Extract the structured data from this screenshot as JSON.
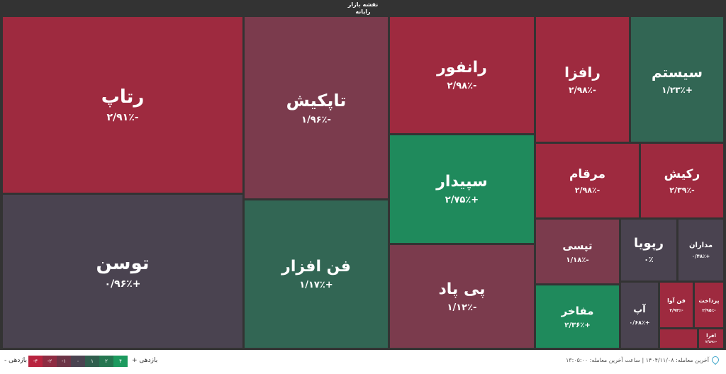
{
  "header": {
    "title": "نقشه بازار",
    "subtitle": "رایانه"
  },
  "colors": {
    "strong_red": "#9e2a3f",
    "muted_red": "#7b3b4d",
    "neutral": "#4a4350",
    "muted_green": "#326654",
    "strong_green": "#1f8a5c"
  },
  "tiles": [
    {
      "name": "رتاپ",
      "change": "-۲/۹۱٪",
      "color": "#9e2a3f"
    },
    {
      "name": "توسن",
      "change": "+۰/۹۶٪",
      "color": "#4a4350"
    },
    {
      "name": "تاپکیش",
      "change": "-۱/۹۶٪",
      "color": "#7b3b4d"
    },
    {
      "name": "فن افزار",
      "change": "+۱/۱۷٪",
      "color": "#326654"
    },
    {
      "name": "رانفور",
      "change": "-۲/۹۸٪",
      "color": "#9e2a3f"
    },
    {
      "name": "سپیدار",
      "change": "+۲/۷۵٪",
      "color": "#1f8a5c"
    },
    {
      "name": "پی پاد",
      "change": "-۱/۱۲٪",
      "color": "#7b3b4d"
    },
    {
      "name": "رافزا",
      "change": "-۲/۹۸٪",
      "color": "#9e2a3f"
    },
    {
      "name": "سیستم",
      "change": "+۱/۲۳٪",
      "color": "#326654"
    },
    {
      "name": "مرقام",
      "change": "-۲/۹۸٪",
      "color": "#9e2a3f"
    },
    {
      "name": "رکیش",
      "change": "-۲/۳۹٪",
      "color": "#9e2a3f"
    },
    {
      "name": "تپسی",
      "change": "-۱/۱۸٪",
      "color": "#7b3b4d"
    },
    {
      "name": "مفاخر",
      "change": "+۲/۳۶٪",
      "color": "#1f8a5c"
    },
    {
      "name": "رپویا",
      "change": "۰٪",
      "color": "#4a4350"
    },
    {
      "name": "مداران",
      "change": "+۰/۴۸٪",
      "color": "#4a4350"
    },
    {
      "name": "آپ",
      "change": "+۰/۶۸٪",
      "color": "#4a4350"
    },
    {
      "name": "فن آوا",
      "change": "-۲/۹۴٪",
      "color": "#9e2a3f"
    },
    {
      "name": "پرداخت",
      "change": "-۲/۹۵٪",
      "color": "#9e2a3f"
    },
    {
      "name": "",
      "change": "",
      "color": "#9e2a3f"
    },
    {
      "name": "افرا",
      "change": "-۲/۸۹٪",
      "color": "#9e2a3f"
    }
  ],
  "legend": {
    "negative_label": "بازدهی -",
    "positive_label": "بازدهی +",
    "steps": [
      {
        "label": "-۴",
        "color": "#b8243f"
      },
      {
        "label": "-۲",
        "color": "#8e2c42"
      },
      {
        "label": "-۱",
        "color": "#6b3446"
      },
      {
        "label": "۰",
        "color": "#4a4350"
      },
      {
        "label": "۱",
        "color": "#2f5e4d"
      },
      {
        "label": "۲",
        "color": "#257650"
      },
      {
        "label": "۴",
        "color": "#1c9a5e"
      }
    ]
  },
  "footer": {
    "last_trade": "آخرین معامله: ۱۴۰۴/۱۱/۰۸ | ساعت آخرین معامله: ۱۳:۰۵:۰۰"
  }
}
